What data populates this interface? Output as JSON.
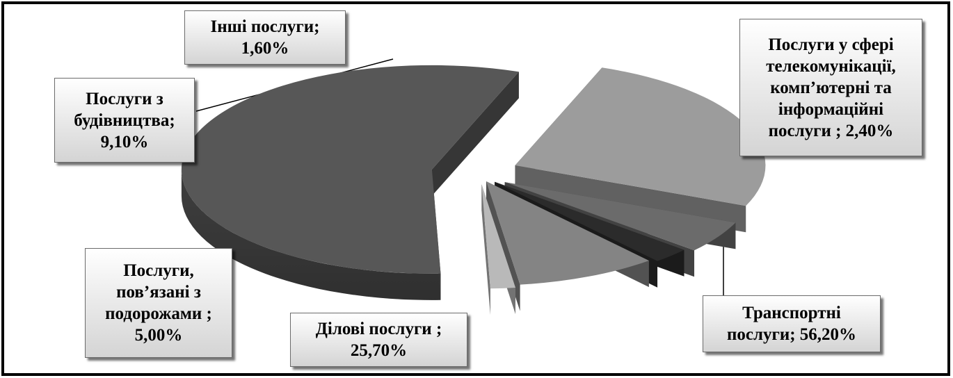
{
  "chart_data": {
    "type": "pie",
    "style": "3d exploded",
    "colors": {
      "Транспортні послуги": "#575757",
      "Ділові послуги": "#9c9c9c",
      "Послуги, пов’язані з подорожами": "#6b6b6b",
      "Послуги з будівництва": "#848484",
      "Послуги у сфері телекомунікації, комп’ютерні та інформаційні послуги": "#2b2b2b",
      "Інші послуги": "#b9b9b9"
    },
    "slices": [
      {
        "label": "Транспортні послуги",
        "value": 56.2
      },
      {
        "label": "Ділові послуги",
        "value": 25.7
      },
      {
        "label": "Послуги, пов’язані з подорожами",
        "value": 5.0
      },
      {
        "label": "Послуги у сфері телекомунікації, комп’ютерні та інформаційні послуги",
        "value": 2.4
      },
      {
        "label": "Послуги з будівництва",
        "value": 9.1
      },
      {
        "label": "Інші послуги",
        "value": 1.6
      }
    ],
    "data_labels": {
      "transport": "Транспортні\nпослуги; 56,20%",
      "business": "Ділові послуги ;\n25,70%",
      "travel": "Послуги,\nпов’язані з\nподорожами ;\n5,00%",
      "telecom": "Послуги у сфері\nтелекомунікації,\nкомп’ютерні та\nінформаційні\nпослуги ; 2,40%",
      "construction": "Послуги з\nбудівництва;\n9,10%",
      "other": "Інші послуги;\n1,60%"
    }
  }
}
